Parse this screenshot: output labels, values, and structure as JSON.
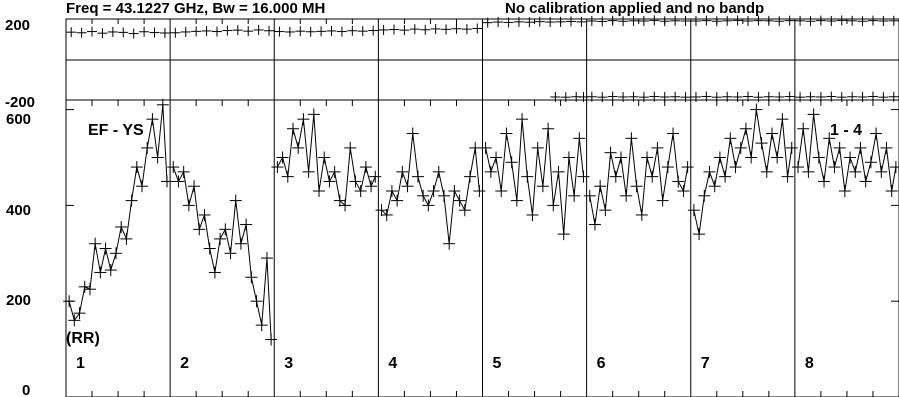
{
  "header": {
    "freq_text": "Freq = 43.1227 GHz, Bw = 16.000 MH",
    "note_text": "No calibration applied and no bandp"
  },
  "phase_panel": {
    "y_tick_labels": [
      "200",
      "-200"
    ],
    "ylim": [
      -200,
      200
    ]
  },
  "amp_panel": {
    "y_tick_labels": [
      "600",
      "400",
      "200",
      "0"
    ],
    "ylim": [
      0,
      620
    ],
    "baseline_label": "EF - YS",
    "polarization_label": "(RR)",
    "corner_label": "1 - 4"
  },
  "chart_data": {
    "type": "scatter",
    "subtitle": "No calibration applied and no bandp",
    "title": "Freq = 43.1227 GHz, Bw = 16.000 MH",
    "channel_labels": [
      "1",
      "2",
      "3",
      "4",
      "5",
      "6",
      "7",
      "8"
    ],
    "phase_ylim": [
      -200,
      200
    ],
    "amp_ylim": [
      0,
      620
    ],
    "phase_series": [
      {
        "channel": "1",
        "points": [
          [
            0.05,
            135
          ],
          [
            0.15,
            132
          ],
          [
            0.25,
            138
          ],
          [
            0.35,
            130
          ],
          [
            0.45,
            136
          ],
          [
            0.55,
            134
          ],
          [
            0.65,
            128
          ],
          [
            0.75,
            137
          ],
          [
            0.85,
            133
          ],
          [
            0.95,
            131
          ]
        ]
      },
      {
        "channel": "2",
        "points": [
          [
            0.05,
            132
          ],
          [
            0.15,
            136
          ],
          [
            0.25,
            139
          ],
          [
            0.35,
            141
          ],
          [
            0.45,
            138
          ],
          [
            0.55,
            143
          ],
          [
            0.65,
            145
          ],
          [
            0.75,
            140
          ],
          [
            0.85,
            146
          ],
          [
            0.95,
            142
          ]
        ]
      },
      {
        "channel": "3",
        "points": [
          [
            0.05,
            138
          ],
          [
            0.15,
            136
          ],
          [
            0.25,
            140
          ],
          [
            0.35,
            137
          ],
          [
            0.45,
            139
          ],
          [
            0.55,
            141
          ],
          [
            0.65,
            138
          ],
          [
            0.75,
            142
          ],
          [
            0.85,
            140
          ],
          [
            0.95,
            143
          ]
        ]
      },
      {
        "channel": "4",
        "points": [
          [
            0.05,
            146
          ],
          [
            0.15,
            148
          ],
          [
            0.25,
            145
          ],
          [
            0.35,
            150
          ],
          [
            0.45,
            147
          ],
          [
            0.55,
            151
          ],
          [
            0.65,
            149
          ],
          [
            0.75,
            152
          ],
          [
            0.85,
            150
          ],
          [
            0.95,
            153
          ]
        ]
      },
      {
        "channel": "5",
        "points": [
          [
            0.05,
            182
          ],
          [
            0.15,
            185
          ],
          [
            0.25,
            183
          ],
          [
            0.35,
            186
          ],
          [
            0.45,
            184
          ],
          [
            0.55,
            187
          ],
          [
            0.65,
            185
          ],
          [
            0.75,
            186
          ],
          [
            0.85,
            188
          ],
          [
            0.95,
            186
          ]
        ]
      },
      {
        "channel": "6",
        "points": [
          [
            0.05,
            190
          ],
          [
            0.15,
            188
          ],
          [
            0.25,
            192
          ],
          [
            0.35,
            189
          ],
          [
            0.45,
            191
          ],
          [
            0.55,
            190
          ],
          [
            0.65,
            193
          ],
          [
            0.75,
            189
          ],
          [
            0.85,
            191
          ],
          [
            0.95,
            190
          ]
        ]
      },
      {
        "channel": "7",
        "points": [
          [
            0.05,
            190
          ],
          [
            0.15,
            192
          ],
          [
            0.25,
            189
          ],
          [
            0.35,
            191
          ],
          [
            0.45,
            193
          ],
          [
            0.55,
            190
          ],
          [
            0.65,
            192
          ],
          [
            0.75,
            191
          ],
          [
            0.85,
            189
          ],
          [
            0.95,
            192
          ]
        ]
      },
      {
        "channel": "8",
        "points": [
          [
            0.05,
            191
          ],
          [
            0.15,
            189
          ],
          [
            0.25,
            192
          ],
          [
            0.35,
            190
          ],
          [
            0.45,
            193
          ],
          [
            0.55,
            191
          ],
          [
            0.65,
            189
          ],
          [
            0.75,
            192
          ],
          [
            0.85,
            190
          ],
          [
            0.95,
            191
          ]
        ]
      },
      {
        "channel": "5",
        "points": [
          [
            0.7,
            -185
          ],
          [
            0.8,
            -186
          ],
          [
            0.9,
            -184
          ],
          [
            0.97,
            -185
          ]
        ]
      },
      {
        "channel": "6",
        "points": [
          [
            0.05,
            -184
          ],
          [
            0.15,
            -186
          ],
          [
            0.25,
            -183
          ],
          [
            0.35,
            -185
          ],
          [
            0.45,
            -184
          ],
          [
            0.55,
            -186
          ],
          [
            0.65,
            -183
          ],
          [
            0.75,
            -185
          ],
          [
            0.85,
            -184
          ],
          [
            0.95,
            -186
          ]
        ]
      },
      {
        "channel": "7",
        "points": [
          [
            0.05,
            -185
          ],
          [
            0.15,
            -183
          ],
          [
            0.25,
            -186
          ],
          [
            0.35,
            -184
          ],
          [
            0.45,
            -185
          ],
          [
            0.55,
            -183
          ],
          [
            0.65,
            -186
          ],
          [
            0.75,
            -184
          ],
          [
            0.85,
            -185
          ],
          [
            0.95,
            -183
          ]
        ]
      },
      {
        "channel": "8",
        "points": [
          [
            0.05,
            -186
          ],
          [
            0.15,
            -184
          ],
          [
            0.25,
            -185
          ],
          [
            0.35,
            -183
          ],
          [
            0.45,
            -186
          ],
          [
            0.55,
            -184
          ],
          [
            0.65,
            -185
          ],
          [
            0.75,
            -183
          ],
          [
            0.85,
            -186
          ],
          [
            0.95,
            -184
          ]
        ]
      }
    ],
    "amp_series": [
      {
        "channel": "1",
        "points": [
          [
            0.03,
            200
          ],
          [
            0.08,
            160
          ],
          [
            0.13,
            175
          ],
          [
            0.18,
            230
          ],
          [
            0.23,
            225
          ],
          [
            0.28,
            320
          ],
          [
            0.33,
            260
          ],
          [
            0.38,
            310
          ],
          [
            0.43,
            265
          ],
          [
            0.48,
            300
          ],
          [
            0.53,
            355
          ],
          [
            0.58,
            330
          ],
          [
            0.63,
            410
          ],
          [
            0.68,
            480
          ],
          [
            0.73,
            440
          ],
          [
            0.78,
            520
          ],
          [
            0.83,
            580
          ],
          [
            0.88,
            500
          ],
          [
            0.93,
            610
          ],
          [
            0.97,
            450
          ]
        ]
      },
      {
        "channel": "2",
        "points": [
          [
            0.03,
            480
          ],
          [
            0.08,
            450
          ],
          [
            0.13,
            470
          ],
          [
            0.18,
            400
          ],
          [
            0.23,
            440
          ],
          [
            0.28,
            350
          ],
          [
            0.33,
            380
          ],
          [
            0.38,
            310
          ],
          [
            0.43,
            260
          ],
          [
            0.48,
            330
          ],
          [
            0.53,
            350
          ],
          [
            0.58,
            300
          ],
          [
            0.63,
            410
          ],
          [
            0.68,
            320
          ],
          [
            0.73,
            360
          ],
          [
            0.78,
            250
          ],
          [
            0.83,
            200
          ],
          [
            0.88,
            150
          ],
          [
            0.93,
            290
          ],
          [
            0.97,
            120
          ]
        ]
      },
      {
        "channel": "3",
        "points": [
          [
            0.03,
            480
          ],
          [
            0.08,
            500
          ],
          [
            0.13,
            460
          ],
          [
            0.18,
            560
          ],
          [
            0.23,
            520
          ],
          [
            0.28,
            580
          ],
          [
            0.33,
            470
          ],
          [
            0.38,
            590
          ],
          [
            0.43,
            430
          ],
          [
            0.48,
            500
          ],
          [
            0.53,
            450
          ],
          [
            0.58,
            470
          ],
          [
            0.63,
            410
          ],
          [
            0.68,
            400
          ],
          [
            0.73,
            520
          ],
          [
            0.78,
            450
          ],
          [
            0.83,
            430
          ],
          [
            0.88,
            480
          ],
          [
            0.93,
            440
          ],
          [
            0.97,
            460
          ]
        ]
      },
      {
        "channel": "4",
        "points": [
          [
            0.03,
            390
          ],
          [
            0.08,
            380
          ],
          [
            0.13,
            430
          ],
          [
            0.18,
            410
          ],
          [
            0.23,
            470
          ],
          [
            0.28,
            440
          ],
          [
            0.33,
            550
          ],
          [
            0.38,
            460
          ],
          [
            0.43,
            420
          ],
          [
            0.48,
            400
          ],
          [
            0.53,
            430
          ],
          [
            0.58,
            470
          ],
          [
            0.63,
            420
          ],
          [
            0.68,
            320
          ],
          [
            0.73,
            430
          ],
          [
            0.78,
            410
          ],
          [
            0.83,
            390
          ],
          [
            0.88,
            460
          ],
          [
            0.93,
            520
          ],
          [
            0.97,
            430
          ]
        ]
      },
      {
        "channel": "5",
        "points": [
          [
            0.03,
            520
          ],
          [
            0.08,
            470
          ],
          [
            0.13,
            500
          ],
          [
            0.18,
            430
          ],
          [
            0.23,
            550
          ],
          [
            0.28,
            490
          ],
          [
            0.33,
            410
          ],
          [
            0.38,
            580
          ],
          [
            0.43,
            460
          ],
          [
            0.48,
            380
          ],
          [
            0.53,
            520
          ],
          [
            0.58,
            440
          ],
          [
            0.63,
            560
          ],
          [
            0.68,
            400
          ],
          [
            0.73,
            470
          ],
          [
            0.78,
            340
          ],
          [
            0.83,
            500
          ],
          [
            0.88,
            420
          ],
          [
            0.93,
            540
          ],
          [
            0.97,
            460
          ]
        ]
      },
      {
        "channel": "6",
        "points": [
          [
            0.03,
            420
          ],
          [
            0.08,
            360
          ],
          [
            0.13,
            440
          ],
          [
            0.18,
            390
          ],
          [
            0.23,
            510
          ],
          [
            0.28,
            460
          ],
          [
            0.33,
            500
          ],
          [
            0.38,
            420
          ],
          [
            0.43,
            540
          ],
          [
            0.48,
            440
          ],
          [
            0.53,
            380
          ],
          [
            0.58,
            500
          ],
          [
            0.63,
            460
          ],
          [
            0.68,
            520
          ],
          [
            0.73,
            410
          ],
          [
            0.78,
            480
          ],
          [
            0.83,
            550
          ],
          [
            0.88,
            450
          ],
          [
            0.93,
            430
          ],
          [
            0.97,
            480
          ]
        ]
      },
      {
        "channel": "7",
        "points": [
          [
            0.03,
            390
          ],
          [
            0.08,
            340
          ],
          [
            0.13,
            420
          ],
          [
            0.18,
            470
          ],
          [
            0.23,
            440
          ],
          [
            0.28,
            500
          ],
          [
            0.33,
            460
          ],
          [
            0.38,
            540
          ],
          [
            0.43,
            480
          ],
          [
            0.48,
            520
          ],
          [
            0.53,
            560
          ],
          [
            0.58,
            500
          ],
          [
            0.63,
            600
          ],
          [
            0.68,
            530
          ],
          [
            0.73,
            470
          ],
          [
            0.78,
            550
          ],
          [
            0.83,
            500
          ],
          [
            0.88,
            580
          ],
          [
            0.93,
            460
          ],
          [
            0.97,
            520
          ]
        ]
      },
      {
        "channel": "8",
        "points": [
          [
            0.03,
            480
          ],
          [
            0.08,
            560
          ],
          [
            0.13,
            470
          ],
          [
            0.18,
            590
          ],
          [
            0.23,
            500
          ],
          [
            0.28,
            450
          ],
          [
            0.33,
            540
          ],
          [
            0.38,
            480
          ],
          [
            0.43,
            520
          ],
          [
            0.48,
            430
          ],
          [
            0.53,
            500
          ],
          [
            0.58,
            470
          ],
          [
            0.63,
            520
          ],
          [
            0.68,
            450
          ],
          [
            0.73,
            490
          ],
          [
            0.78,
            550
          ],
          [
            0.83,
            470
          ],
          [
            0.88,
            520
          ],
          [
            0.93,
            430
          ],
          [
            0.97,
            480
          ]
        ]
      }
    ]
  }
}
